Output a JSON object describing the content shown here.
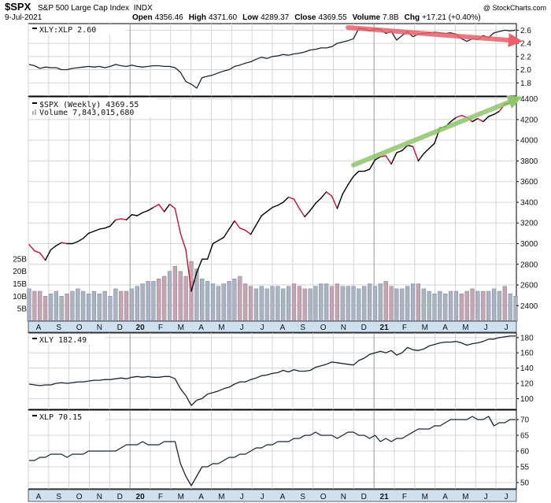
{
  "header": {
    "symbol": "$SPX",
    "name": "S&P 500 Large Cap Index",
    "exchange": "INDX",
    "date": "9-Jul-2021",
    "watermark": "@ StockCharts.com",
    "stats": [
      {
        "label": "Open",
        "value": "4356.46"
      },
      {
        "label": "High",
        "value": "4371.60"
      },
      {
        "label": "Low",
        "value": "4289.37"
      },
      {
        "label": "Close",
        "value": "4369.55"
      },
      {
        "label": "Volume",
        "value": "7.8B"
      },
      {
        "label": "Chg",
        "value": "+17.21 (+0.40%)"
      }
    ]
  },
  "x_axis": {
    "labels": [
      "A",
      "S",
      "O",
      "N",
      "D",
      "20",
      "F",
      "M",
      "A",
      "M",
      "J",
      "J",
      "A",
      "S",
      "O",
      "N",
      "D",
      "21",
      "F",
      "M",
      "A",
      "M",
      "J",
      "J"
    ],
    "bold": [
      "20",
      "21"
    ]
  },
  "colors": {
    "background": "#ffffff",
    "panel_border": "#000000",
    "grid": "#d4d4d4",
    "year_line": "#9a9a9a",
    "strip": "#cfe0ee",
    "up_line": "#000000",
    "down_line": "#c8102e",
    "vol_up": "#a9b3c4",
    "vol_down": "#c9a3b0",
    "red_arrow": "#e8606a",
    "green_arrow": "#8fc46b"
  },
  "chart_data": [
    {
      "id": "ratio",
      "type": "line",
      "legend": "XLY:XLP 2.60",
      "ylim": [
        1.6,
        2.7
      ],
      "yticks": [
        1.8,
        2.0,
        2.2,
        2.4,
        2.6
      ],
      "annotation": {
        "type": "arrow",
        "color": "red",
        "from": [
          59,
          2.64
        ],
        "to": [
          90,
          2.44
        ]
      },
      "values": [
        2.08,
        2.06,
        2.02,
        2.04,
        2.03,
        2.03,
        2.0,
        2.0,
        2.02,
        2.03,
        2.04,
        2.05,
        2.04,
        2.05,
        2.03,
        2.05,
        2.08,
        2.06,
        2.05,
        2.07,
        2.05,
        2.04,
        2.05,
        2.06,
        2.06,
        2.05,
        2.05,
        2.03,
        1.96,
        1.82,
        1.78,
        1.72,
        1.88,
        1.9,
        1.92,
        1.95,
        1.98,
        2.0,
        2.05,
        2.07,
        2.1,
        2.12,
        2.16,
        2.19,
        2.17,
        2.2,
        2.21,
        2.23,
        2.22,
        2.24,
        2.25,
        2.27,
        2.3,
        2.31,
        2.33,
        2.33,
        2.35,
        2.4,
        2.42,
        2.44,
        2.47,
        2.63,
        2.62,
        2.59,
        2.62,
        2.61,
        2.55,
        2.58,
        2.45,
        2.52,
        2.58,
        2.5,
        2.54,
        2.55,
        2.56,
        2.57,
        2.56,
        2.55,
        2.56,
        2.54,
        2.47,
        2.43,
        2.47,
        2.46,
        2.52,
        2.49,
        2.56,
        2.58,
        2.6,
        2.59,
        2.6
      ]
    },
    {
      "id": "spx",
      "type": "line",
      "legend": "$SPX (Weekly) 4369.55",
      "volume_legend": "Volume 7,843,015,680",
      "ylim": [
        2250,
        4420
      ],
      "yticks": [
        2400,
        2600,
        2800,
        3000,
        3200,
        3400,
        3600,
        3800,
        4000,
        4200,
        4400
      ],
      "volume_ylim": [
        0,
        30
      ],
      "volume_ticks": [
        5,
        10,
        15,
        20,
        25
      ],
      "volume_tick_labels": [
        "5B",
        "10B",
        "15B",
        "20B",
        "25B"
      ],
      "annotation": {
        "type": "arrow",
        "color": "green",
        "from": [
          60,
          3760
        ],
        "to": [
          90,
          4395
        ]
      },
      "values": [
        2990,
        2930,
        2910,
        2840,
        2940,
        2980,
        3010,
        3000,
        3000,
        3020,
        3050,
        3100,
        3120,
        3140,
        3150,
        3170,
        3230,
        3240,
        3230,
        3280,
        3270,
        3300,
        3320,
        3350,
        3380,
        3310,
        3380,
        3340,
        3100,
        2940,
        2540,
        2720,
        2850,
        2850,
        3000,
        3030,
        3060,
        3140,
        3220,
        3150,
        3130,
        3090,
        3180,
        3270,
        3310,
        3350,
        3370,
        3400,
        3450,
        3430,
        3340,
        3260,
        3320,
        3390,
        3440,
        3500,
        3460,
        3340,
        3480,
        3570,
        3650,
        3700,
        3700,
        3720,
        3810,
        3840,
        3850,
        3770,
        3880,
        3900,
        3950,
        3940,
        3800,
        3870,
        3920,
        3970,
        4120,
        4130,
        4180,
        4220,
        4240,
        4220,
        4180,
        4210,
        4180,
        4230,
        4250,
        4280,
        4350,
        4360,
        4370
      ],
      "volume": [
        13,
        12,
        12,
        10,
        11,
        12,
        10,
        11,
        12,
        13,
        12,
        11,
        12,
        11,
        12,
        10,
        13,
        12,
        12,
        13,
        14,
        15,
        16,
        16,
        17,
        18,
        20,
        22,
        20,
        18,
        24,
        21,
        17,
        16,
        15,
        14,
        15,
        16,
        17,
        18,
        15,
        14,
        13,
        14,
        13,
        14,
        14,
        13,
        14,
        15,
        14,
        13,
        13,
        14,
        15,
        15,
        14,
        15,
        14,
        14,
        14,
        13,
        14,
        15,
        14,
        15,
        16,
        14,
        13,
        13,
        14,
        15,
        15,
        13,
        12,
        11,
        12,
        11,
        12,
        12,
        11,
        12,
        13,
        12,
        12,
        12,
        13,
        12,
        14,
        11,
        10
      ],
      "down_weeks": [
        1,
        2,
        3,
        7,
        17,
        18,
        24,
        25,
        27,
        28,
        29,
        30,
        39,
        40,
        41,
        49,
        50,
        51,
        56,
        57,
        66,
        67,
        72,
        80,
        81,
        82,
        84,
        88
      ]
    },
    {
      "id": "xly",
      "type": "line",
      "legend": "XLY 182.49",
      "ylim": [
        86,
        186
      ],
      "yticks": [
        100,
        120,
        140,
        160,
        180
      ],
      "values": [
        119,
        118,
        117,
        118,
        118,
        120,
        121,
        120,
        121,
        122,
        122,
        123,
        124,
        124,
        125,
        125,
        126,
        127,
        126,
        128,
        129,
        128,
        129,
        128,
        128,
        129,
        129,
        126,
        113,
        104,
        91,
        98,
        100,
        106,
        108,
        110,
        113,
        115,
        119,
        122,
        122,
        125,
        127,
        130,
        131,
        133,
        134,
        137,
        135,
        138,
        136,
        136,
        137,
        141,
        143,
        145,
        148,
        147,
        146,
        145,
        144,
        150,
        153,
        158,
        160,
        162,
        160,
        163,
        157,
        160,
        167,
        164,
        163,
        165,
        169,
        171,
        173,
        174,
        174,
        175,
        173,
        170,
        172,
        173,
        175,
        178,
        178,
        180,
        181,
        182,
        182
      ]
    },
    {
      "id": "xlp",
      "type": "line",
      "legend": "XLP 70.15",
      "ylim": [
        48,
        73
      ],
      "yticks": [
        50,
        55,
        60,
        65,
        70
      ],
      "values": [
        57,
        57,
        58,
        58,
        59,
        59,
        59,
        58,
        59,
        59,
        59,
        60,
        60,
        60,
        60,
        60,
        60,
        61,
        62,
        62,
        62,
        63,
        62,
        62,
        62,
        63,
        63,
        63,
        56,
        52,
        49,
        52,
        55,
        55,
        56,
        56,
        57,
        58,
        58,
        59,
        59,
        60,
        61,
        61,
        62,
        62,
        63,
        63,
        63,
        64,
        64,
        65,
        65,
        66,
        65,
        65,
        65,
        64,
        65,
        66,
        66,
        65,
        65,
        64,
        65,
        63,
        64,
        63,
        64,
        64,
        65,
        66,
        67,
        67,
        67,
        68,
        68,
        69,
        70,
        70,
        70,
        70,
        71,
        70,
        70,
        71,
        68,
        69,
        69,
        70,
        70
      ]
    }
  ]
}
